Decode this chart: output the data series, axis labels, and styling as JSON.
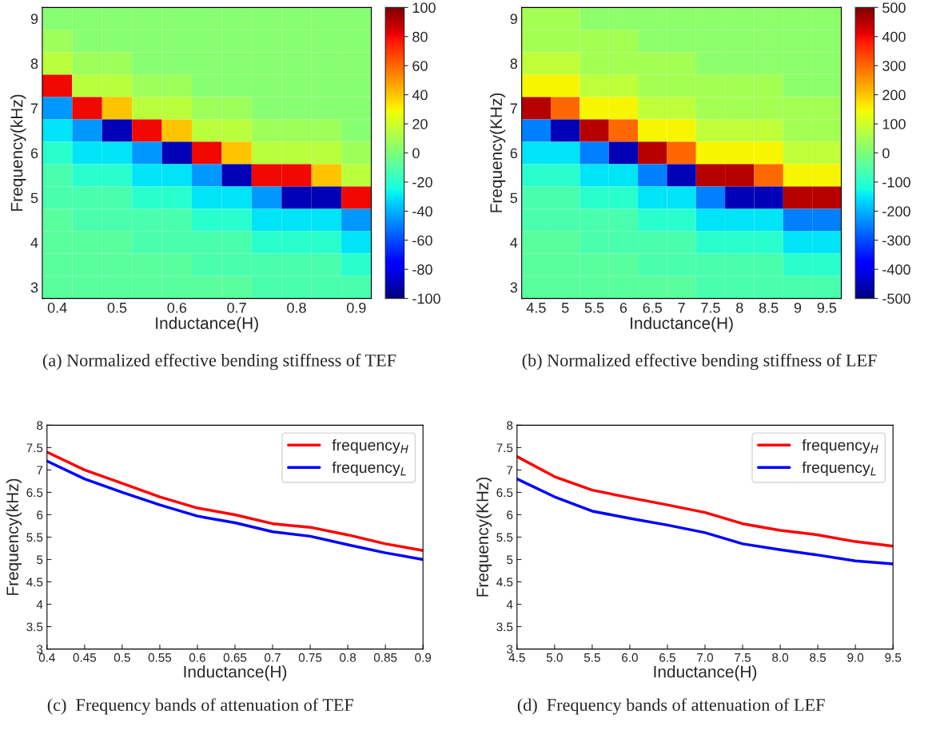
{
  "chart_data": [
    {
      "type": "heatmap",
      "xlabel": "Inductance(H)",
      "ylabel": "Frequency(kHz)",
      "annotations": [
        "(a) Normalized effective bending stiffness of TEF"
      ],
      "clim": [
        -100,
        100
      ],
      "cticks": [
        -100,
        -80,
        -60,
        -40,
        -20,
        0,
        20,
        40,
        60,
        80,
        100
      ],
      "categories": [
        "0.4",
        null,
        "0.5",
        null,
        "0.6",
        null,
        "0.7",
        null,
        "0.8",
        null,
        "0.9"
      ],
      "y_categories": [
        "9",
        null,
        "8",
        null,
        "7",
        null,
        "6",
        null,
        "5",
        null,
        "4",
        null,
        "3"
      ],
      "cells": [
        [
          3,
          3,
          3,
          3,
          3,
          3,
          3,
          3,
          3,
          3,
          3
        ],
        [
          8,
          3,
          3,
          3,
          3,
          3,
          3,
          3,
          3,
          3,
          3
        ],
        [
          15,
          8,
          8,
          3,
          3,
          3,
          3,
          3,
          3,
          3,
          3
        ],
        [
          80,
          15,
          15,
          8,
          8,
          3,
          3,
          3,
          3,
          3,
          3
        ],
        [
          -45,
          80,
          40,
          15,
          15,
          8,
          8,
          3,
          3,
          3,
          3
        ],
        [
          -30,
          -45,
          -90,
          80,
          40,
          15,
          15,
          8,
          8,
          8,
          3
        ],
        [
          -20,
          -30,
          -30,
          -45,
          -90,
          80,
          40,
          15,
          15,
          15,
          8
        ],
        [
          -12,
          -20,
          -20,
          -30,
          -30,
          -45,
          -90,
          80,
          80,
          40,
          15
        ],
        [
          -12,
          -12,
          -12,
          -20,
          -20,
          -30,
          -30,
          -45,
          -90,
          -90,
          80
        ],
        [
          -8,
          -12,
          -12,
          -12,
          -12,
          -20,
          -20,
          -30,
          -30,
          -30,
          -45
        ],
        [
          -8,
          -8,
          -8,
          -12,
          -12,
          -12,
          -12,
          -20,
          -20,
          -20,
          -30
        ],
        [
          -8,
          -8,
          -8,
          -8,
          -8,
          -12,
          -12,
          -12,
          -12,
          -12,
          -20
        ],
        [
          -8,
          -8,
          -8,
          -8,
          -8,
          -8,
          -8,
          -12,
          -12,
          -12,
          -12
        ]
      ]
    },
    {
      "type": "heatmap",
      "xlabel": "Inductance(H)",
      "ylabel": "Frequency(KHz)",
      "annotations": [
        "(b) Normalized effective bending stiffness of LEF"
      ],
      "clim": [
        -500,
        500
      ],
      "cticks": [
        -500,
        -400,
        -300,
        -200,
        -100,
        0,
        100,
        200,
        300,
        400,
        500
      ],
      "categories": [
        "4.5",
        "5",
        "5.5",
        "6",
        "6.5",
        "7",
        "7.5",
        "8",
        "8.5",
        "9",
        "9.5"
      ],
      "y_categories": [
        "9",
        null,
        "8",
        null,
        "7",
        null,
        "6",
        null,
        "5",
        null,
        "4",
        null,
        "3"
      ],
      "cells": [
        [
          50,
          50,
          20,
          20,
          20,
          20,
          20,
          20,
          20,
          20,
          20
        ],
        [
          50,
          50,
          50,
          50,
          20,
          20,
          20,
          20,
          20,
          20,
          20
        ],
        [
          80,
          80,
          50,
          50,
          50,
          50,
          20,
          20,
          20,
          20,
          20
        ],
        [
          150,
          150,
          80,
          80,
          50,
          50,
          50,
          50,
          50,
          20,
          20
        ],
        [
          450,
          300,
          150,
          150,
          80,
          80,
          50,
          50,
          50,
          50,
          50
        ],
        [
          -250,
          -450,
          450,
          300,
          150,
          150,
          80,
          80,
          80,
          50,
          50
        ],
        [
          -150,
          -150,
          -250,
          -450,
          450,
          300,
          150,
          150,
          150,
          80,
          80
        ],
        [
          -100,
          -100,
          -150,
          -150,
          -250,
          -450,
          450,
          450,
          300,
          150,
          150
        ],
        [
          -60,
          -60,
          -100,
          -100,
          -150,
          -150,
          -250,
          -450,
          -450,
          450,
          450
        ],
        [
          -60,
          -60,
          -60,
          -60,
          -100,
          -100,
          -150,
          -150,
          -150,
          -250,
          -250
        ],
        [
          -40,
          -40,
          -60,
          -60,
          -60,
          -60,
          -100,
          -100,
          -100,
          -150,
          -150
        ],
        [
          -40,
          -40,
          -40,
          -40,
          -60,
          -60,
          -60,
          -60,
          -60,
          -100,
          -100
        ],
        [
          -40,
          -40,
          -40,
          -40,
          -40,
          -40,
          -60,
          -60,
          -60,
          -60,
          -60
        ]
      ]
    },
    {
      "type": "line",
      "xlabel": "Inductance(H)",
      "ylabel": "Frequency(kHz)",
      "annotations": [
        "(c)  Frequency bands of attenuation of TEF"
      ],
      "legend": "top right",
      "grid": false,
      "line_style": "solid",
      "marker": "none",
      "x": [
        0.4,
        0.45,
        0.5,
        0.55,
        0.6,
        0.65,
        0.7,
        0.75,
        0.8,
        0.85,
        0.9
      ],
      "xlim": [
        0.4,
        0.9
      ],
      "xticks": [
        0.4,
        0.45,
        0.5,
        0.55,
        0.6,
        0.65,
        0.7,
        0.75,
        0.8,
        0.85,
        0.9
      ],
      "ylim": [
        3,
        8
      ],
      "yticks": [
        3,
        3.5,
        4,
        4.5,
        5,
        5.5,
        6,
        6.5,
        7,
        7.5,
        8
      ],
      "series": [
        {
          "name": "frequency$_{H}$",
          "color": "#ff0000",
          "values": [
            7.4,
            7.0,
            6.7,
            6.4,
            6.15,
            6.0,
            5.8,
            5.72,
            5.55,
            5.35,
            5.2
          ]
        },
        {
          "name": "frequency$_{L}$",
          "color": "#0000ff",
          "values": [
            7.2,
            6.8,
            6.5,
            6.22,
            5.97,
            5.82,
            5.62,
            5.52,
            5.33,
            5.15,
            5.0
          ]
        }
      ]
    },
    {
      "type": "line",
      "xlabel": "Inductance(H)",
      "ylabel": "Frequency(KHz)",
      "annotations": [
        "(d)  Frequency bands of attenuation of LEF"
      ],
      "legend": "top right",
      "grid": false,
      "line_style": "solid",
      "marker": "none",
      "x": [
        4.5,
        5,
        5.5,
        6,
        6.5,
        7,
        7.5,
        8,
        8.5,
        9,
        9.5
      ],
      "xlim": [
        4.5,
        9.5
      ],
      "xticks": [
        4.5,
        {
          "value": 5,
          "label": "5.0"
        },
        5.5,
        {
          "value": 6,
          "label": "6.0"
        },
        6.5,
        {
          "value": 7,
          "label": "7.0"
        },
        7.5,
        {
          "value": 8,
          "label": "8.0"
        },
        8.5,
        {
          "value": 9,
          "label": "9.0"
        },
        9.5
      ],
      "ylim": [
        3,
        8
      ],
      "yticks": [
        3,
        3.5,
        4,
        4.5,
        5,
        5.5,
        6,
        6.5,
        7,
        7.5,
        8
      ],
      "series": [
        {
          "name": "frequency$_{H}$",
          "color": "#ff0000",
          "values": [
            7.3,
            6.85,
            6.55,
            6.38,
            6.22,
            6.05,
            5.8,
            5.65,
            5.55,
            5.4,
            5.3
          ]
        },
        {
          "name": "frequency$_{L}$",
          "color": "#0000ff",
          "values": [
            6.8,
            6.4,
            6.08,
            5.92,
            5.77,
            5.6,
            5.35,
            5.22,
            5.1,
            4.97,
            4.9
          ]
        }
      ]
    }
  ]
}
